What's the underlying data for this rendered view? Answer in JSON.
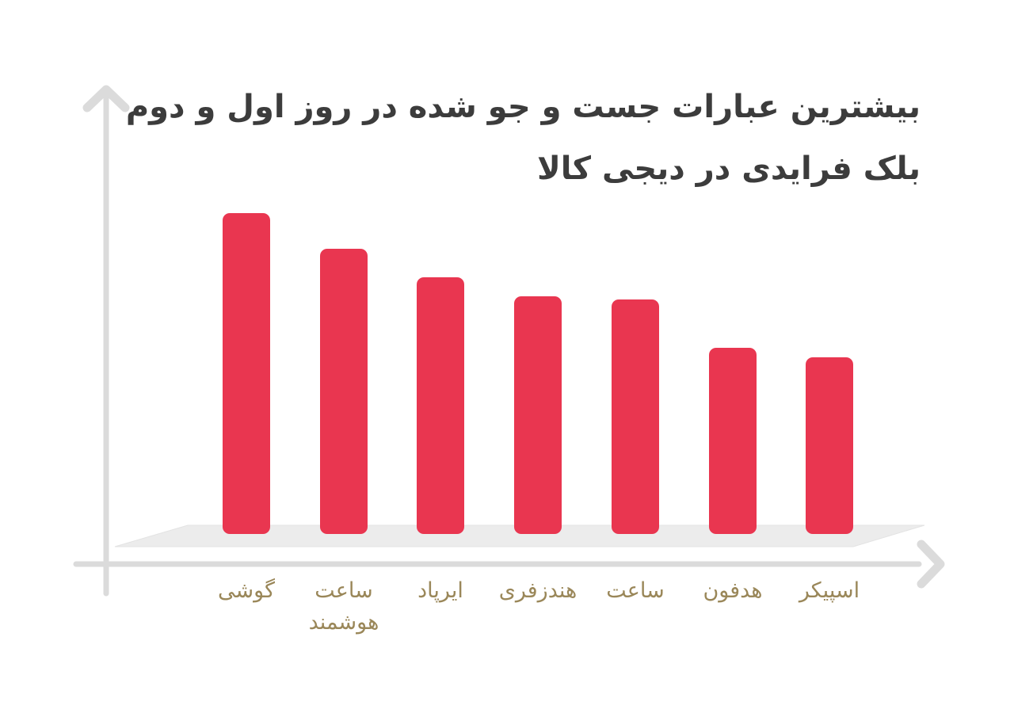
{
  "colors": {
    "bar": "#e93650",
    "axis": "#dbdbdb",
    "floor_fill": "#ececec",
    "floor_border": "#e3e3e3",
    "title_text": "#3c3c3c",
    "label_text": "#9a8759",
    "background": "#ffffff"
  },
  "chart": {
    "title_line1": "بیشترین عبارات جست و جو شده در روز اول و دوم",
    "title_line2": "بلک فرایدی در دیجی کالا"
  },
  "chart_data": {
    "type": "bar",
    "title": "بیشترین عبارات جست و جو شده در روز اول و دوم بلک فرایدی در دیجی کالا",
    "categories": [
      "گوشی",
      "ساعت هوشمند",
      "ایرپاد",
      "هندزفری",
      "ساعت",
      "هدفون",
      "اسپیکر"
    ],
    "values_relative": [
      100,
      89,
      80,
      74,
      73,
      58,
      55
    ],
    "value_note": "no numeric value axis is shown in the image; values are relative bar heights with the tallest bar = 100",
    "bars": [
      {
        "label": "گوشی",
        "value": 100
      },
      {
        "label": "ساعت هوشمند",
        "value": 89
      },
      {
        "label": "ایرپاد",
        "value": 80
      },
      {
        "label": "هندزفری",
        "value": 74
      },
      {
        "label": "ساعت",
        "value": 73
      },
      {
        "label": "هدفون",
        "value": 58
      },
      {
        "label": "اسپیکر",
        "value": 55
      }
    ],
    "xlabel": "",
    "ylabel": "",
    "ylim": [
      0,
      100
    ],
    "grid": false,
    "legend": false,
    "bar_color": "#e93650",
    "orientation": "vertical",
    "axis_style": "arrow axes, no ticks, 3d floor shadow under bars"
  }
}
